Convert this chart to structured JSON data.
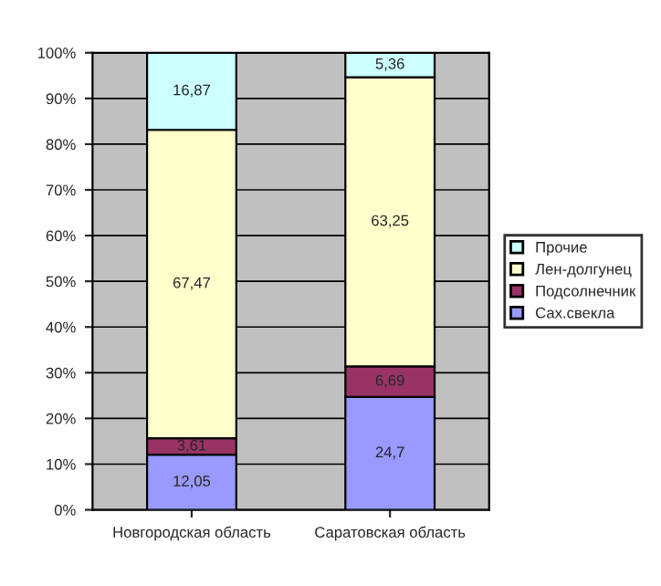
{
  "chart_data": {
    "type": "bar",
    "stacked": true,
    "categories": [
      "Новгородская область",
      "Саратовская область"
    ],
    "series": [
      {
        "name": "Сах.свекла",
        "color": "#9999ff",
        "values": [
          12.05,
          24.7
        ],
        "value_labels": [
          "12,05",
          "24,7"
        ]
      },
      {
        "name": "Подсолнечник",
        "color": "#993366",
        "values": [
          3.61,
          6.69
        ],
        "value_labels": [
          "3,61",
          "6,69"
        ]
      },
      {
        "name": "Лен-долгунец",
        "color": "#ffffcc",
        "values": [
          67.47,
          63.25
        ],
        "value_labels": [
          "67,47",
          "63,25"
        ]
      },
      {
        "name": "Прочие",
        "color": "#ccffff",
        "values": [
          16.87,
          5.36
        ],
        "value_labels": [
          "16,87",
          "5,36"
        ]
      }
    ],
    "ylim": [
      0,
      100
    ],
    "yticks": [
      {
        "value": 0,
        "label": "0%"
      },
      {
        "value": 10,
        "label": "10%"
      },
      {
        "value": 20,
        "label": "20%"
      },
      {
        "value": 30,
        "label": "30%"
      },
      {
        "value": 40,
        "label": "40%"
      },
      {
        "value": 50,
        "label": "50%"
      },
      {
        "value": 60,
        "label": "60%"
      },
      {
        "value": 70,
        "label": "70%"
      },
      {
        "value": 80,
        "label": "80%"
      },
      {
        "value": 90,
        "label": "90%"
      },
      {
        "value": 100,
        "label": "100%"
      }
    ],
    "grid": "y",
    "legend": "right"
  }
}
